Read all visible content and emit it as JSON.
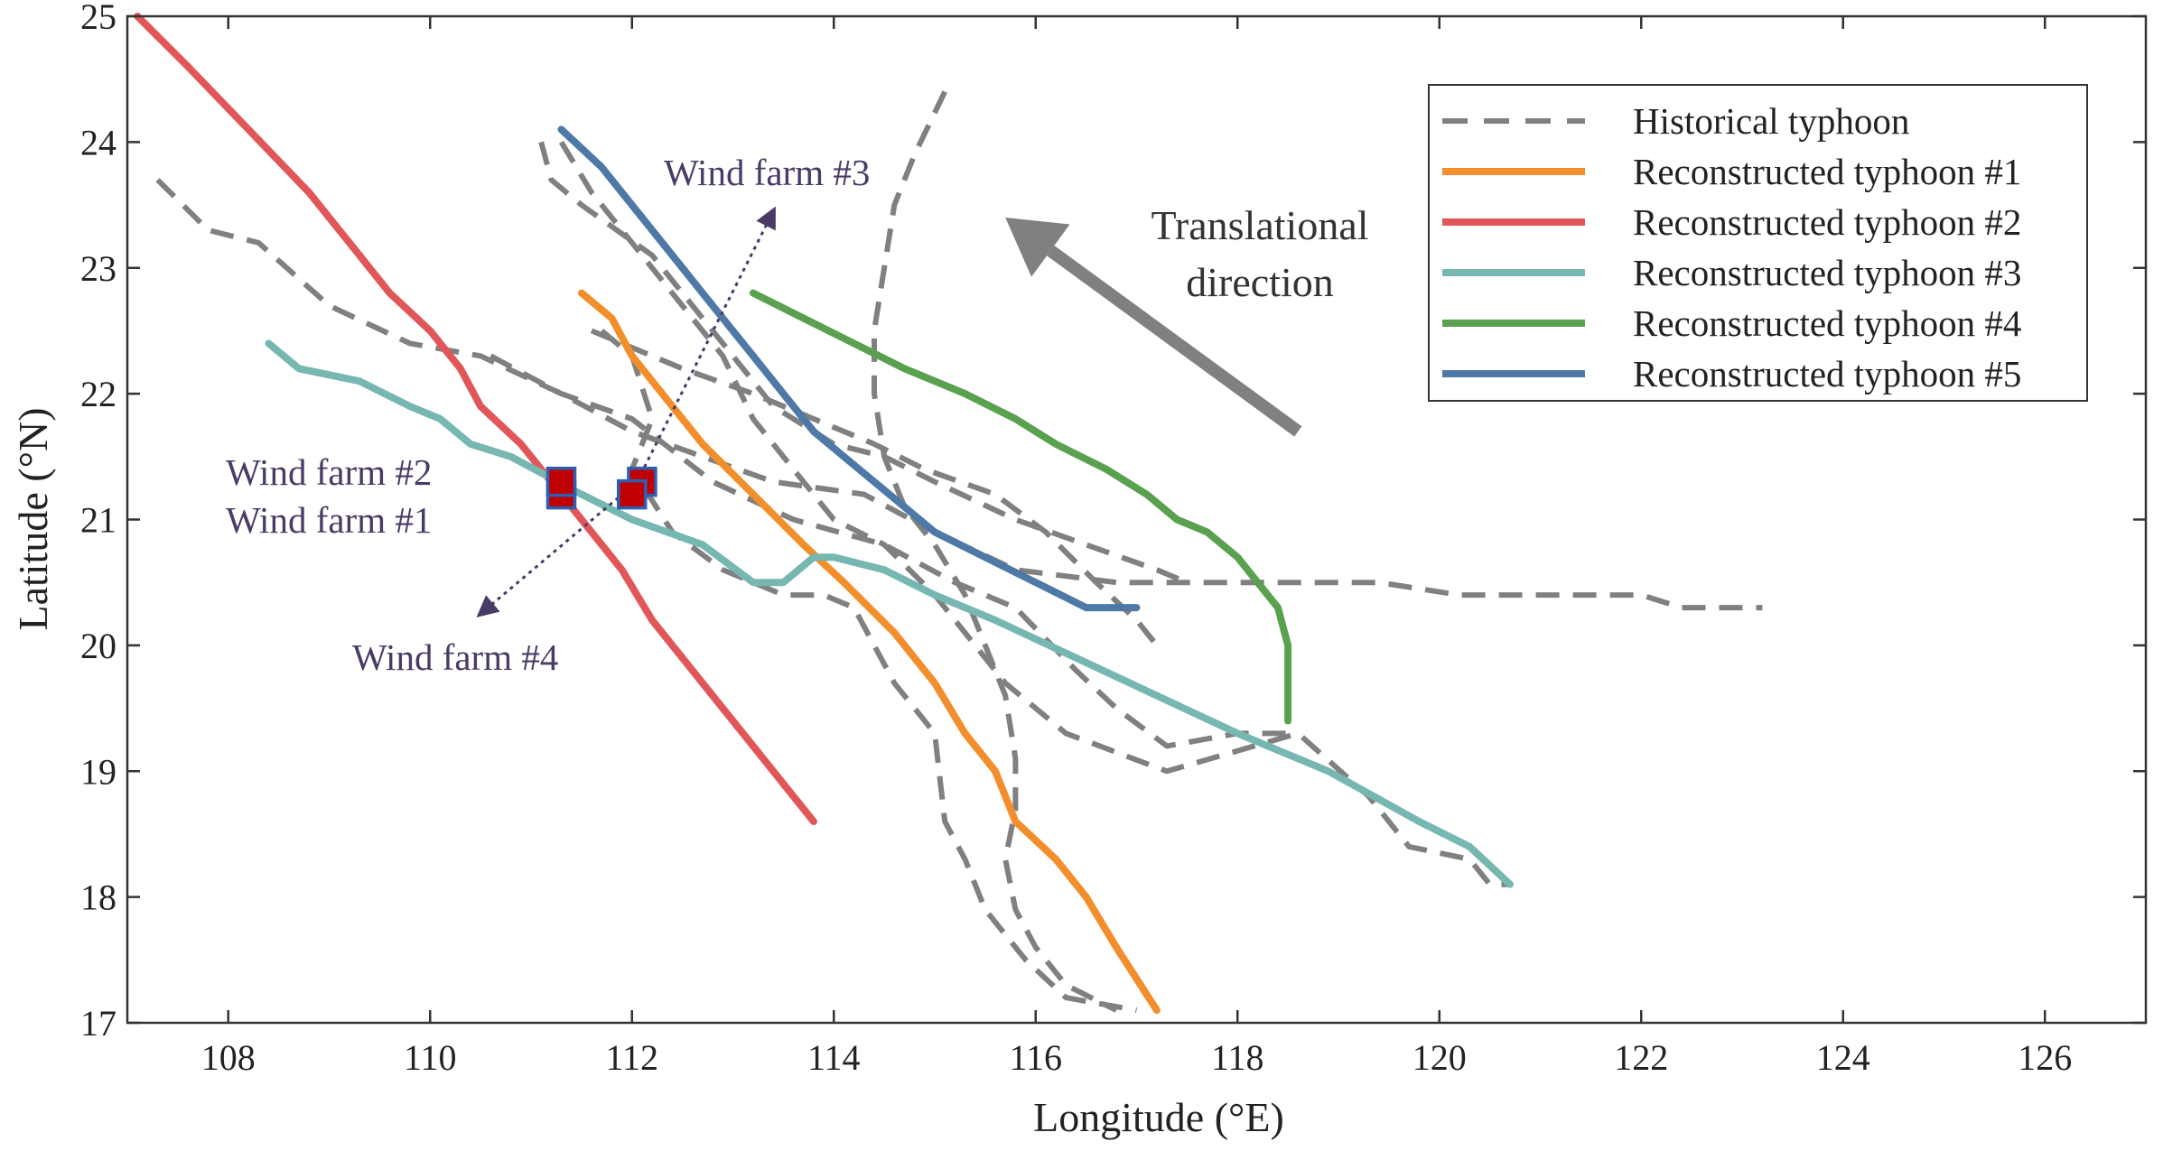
{
  "chart_data": {
    "type": "line",
    "title": "",
    "xlabel": "Longitude (°E)",
    "ylabel": "Latitude (°N)",
    "xlim": [
      107,
      127
    ],
    "ylim": [
      17,
      25
    ],
    "xticks": [
      108,
      110,
      112,
      114,
      116,
      118,
      120,
      122,
      124,
      126
    ],
    "yticks": [
      17,
      18,
      19,
      20,
      21,
      22,
      23,
      24,
      25
    ],
    "grid": false,
    "legend_position": "top-right",
    "historical_tracks": {
      "name": "Historical typhoon",
      "color": "#808080",
      "style": "dashed",
      "tracks": [
        [
          [
            107.3,
            23.7
          ],
          [
            107.8,
            23.3
          ],
          [
            108.3,
            23.2
          ],
          [
            109.0,
            22.7
          ],
          [
            109.8,
            22.4
          ],
          [
            110.5,
            22.3
          ],
          [
            111.3,
            22.0
          ],
          [
            112.0,
            21.7
          ],
          [
            112.7,
            21.5
          ],
          [
            113.4,
            21.3
          ],
          [
            114.3,
            21.2
          ],
          [
            115.0,
            20.9
          ],
          [
            115.8,
            20.6
          ],
          [
            116.8,
            20.5
          ],
          [
            118.0,
            20.5
          ],
          [
            119.4,
            20.5
          ],
          [
            120.2,
            20.4
          ],
          [
            122.0,
            20.4
          ],
          [
            122.4,
            20.3
          ],
          [
            123.2,
            20.3
          ]
        ],
        [
          [
            111.1,
            24.0
          ],
          [
            111.2,
            23.7
          ],
          [
            111.5,
            23.5
          ],
          [
            112.2,
            23.1
          ],
          [
            112.6,
            22.7
          ],
          [
            113.0,
            22.3
          ],
          [
            113.4,
            21.9
          ],
          [
            114.0,
            21.6
          ],
          [
            114.5,
            21.5
          ],
          [
            115.0,
            21.3
          ],
          [
            115.8,
            21.0
          ],
          [
            116.5,
            20.8
          ],
          [
            117.2,
            20.6
          ],
          [
            117.5,
            20.5
          ]
        ],
        [
          [
            111.3,
            24.0
          ],
          [
            111.6,
            23.6
          ],
          [
            112.0,
            23.2
          ],
          [
            112.5,
            22.7
          ],
          [
            112.9,
            22.3
          ],
          [
            113.2,
            21.8
          ],
          [
            113.6,
            21.4
          ],
          [
            114.0,
            21.0
          ],
          [
            114.5,
            20.8
          ],
          [
            115.0,
            20.4
          ],
          [
            115.7,
            19.7
          ],
          [
            116.3,
            19.3
          ],
          [
            117.3,
            19.0
          ],
          [
            118.6,
            19.3
          ],
          [
            119.3,
            18.8
          ],
          [
            119.7,
            18.4
          ],
          [
            120.3,
            18.3
          ],
          [
            120.5,
            18.1
          ],
          [
            120.7,
            18.1
          ]
        ],
        [
          [
            110.6,
            22.3
          ],
          [
            111.3,
            22.0
          ],
          [
            112.0,
            21.8
          ],
          [
            112.8,
            21.3
          ],
          [
            113.6,
            21.0
          ],
          [
            114.5,
            20.8
          ],
          [
            115.2,
            20.5
          ],
          [
            115.8,
            20.3
          ],
          [
            116.4,
            19.8
          ],
          [
            116.8,
            19.5
          ],
          [
            117.3,
            19.2
          ],
          [
            118.0,
            19.3
          ],
          [
            118.6,
            19.3
          ]
        ],
        [
          [
            111.7,
            22.5
          ],
          [
            112.0,
            22.3
          ],
          [
            112.2,
            21.8
          ],
          [
            112.0,
            21.4
          ],
          [
            112.4,
            20.9
          ],
          [
            112.9,
            20.6
          ],
          [
            113.5,
            20.4
          ],
          [
            113.9,
            20.4
          ],
          [
            114.2,
            20.3
          ],
          [
            114.6,
            19.7
          ],
          [
            115.0,
            19.3
          ],
          [
            115.1,
            18.6
          ],
          [
            115.3,
            18.3
          ],
          [
            115.5,
            17.9
          ],
          [
            115.9,
            17.5
          ],
          [
            116.3,
            17.2
          ],
          [
            117.0,
            17.1
          ]
        ],
        [
          [
            111.6,
            22.5
          ],
          [
            111.9,
            22.4
          ],
          [
            112.5,
            22.2
          ],
          [
            113.2,
            22.0
          ],
          [
            113.8,
            21.8
          ],
          [
            114.4,
            21.6
          ],
          [
            114.9,
            21.4
          ],
          [
            115.6,
            21.2
          ],
          [
            116.1,
            20.9
          ],
          [
            116.6,
            20.5
          ],
          [
            117.0,
            20.2
          ],
          [
            117.2,
            20.0
          ]
        ],
        [
          [
            115.1,
            24.4
          ],
          [
            114.8,
            23.9
          ],
          [
            114.6,
            23.5
          ],
          [
            114.5,
            23.0
          ],
          [
            114.4,
            22.5
          ],
          [
            114.4,
            22.0
          ],
          [
            114.5,
            21.5
          ],
          [
            114.7,
            21.1
          ],
          [
            115.0,
            20.8
          ],
          [
            115.3,
            20.4
          ],
          [
            115.5,
            20.0
          ],
          [
            115.7,
            19.6
          ],
          [
            115.8,
            19.1
          ],
          [
            115.8,
            18.7
          ],
          [
            115.7,
            18.3
          ],
          [
            115.8,
            17.9
          ],
          [
            116.0,
            17.6
          ],
          [
            116.3,
            17.3
          ],
          [
            116.8,
            17.1
          ]
        ]
      ]
    },
    "series": [
      {
        "name": "Reconstructed typhoon #1",
        "color": "#f28e2b",
        "points": [
          [
            111.5,
            22.8
          ],
          [
            111.8,
            22.6
          ],
          [
            112.0,
            22.3
          ],
          [
            112.3,
            22.0
          ],
          [
            112.7,
            21.6
          ],
          [
            113.2,
            21.2
          ],
          [
            113.7,
            20.8
          ],
          [
            114.1,
            20.5
          ],
          [
            114.6,
            20.1
          ],
          [
            115.0,
            19.7
          ],
          [
            115.3,
            19.3
          ],
          [
            115.6,
            19.0
          ],
          [
            115.8,
            18.6
          ],
          [
            116.2,
            18.3
          ],
          [
            116.5,
            18.0
          ],
          [
            116.8,
            17.6
          ],
          [
            117.2,
            17.1
          ]
        ]
      },
      {
        "name": "Reconstructed typhoon #2",
        "color": "#e15759",
        "points": [
          [
            107.1,
            25.0
          ],
          [
            107.6,
            24.6
          ],
          [
            108.2,
            24.1
          ],
          [
            108.8,
            23.6
          ],
          [
            109.2,
            23.2
          ],
          [
            109.6,
            22.8
          ],
          [
            110.0,
            22.5
          ],
          [
            110.3,
            22.2
          ],
          [
            110.5,
            21.9
          ],
          [
            110.9,
            21.6
          ],
          [
            111.2,
            21.3
          ],
          [
            111.5,
            21.0
          ],
          [
            111.9,
            20.6
          ],
          [
            112.2,
            20.2
          ],
          [
            112.5,
            19.9
          ],
          [
            112.8,
            19.6
          ],
          [
            113.2,
            19.2
          ],
          [
            113.5,
            18.9
          ],
          [
            113.8,
            18.6
          ]
        ]
      },
      {
        "name": "Reconstructed typhoon #3",
        "color": "#76b7b2",
        "points": [
          [
            108.4,
            22.4
          ],
          [
            108.7,
            22.2
          ],
          [
            109.3,
            22.1
          ],
          [
            109.8,
            21.9
          ],
          [
            110.1,
            21.8
          ],
          [
            110.4,
            21.6
          ],
          [
            110.8,
            21.5
          ],
          [
            111.5,
            21.2
          ],
          [
            112.0,
            21.0
          ],
          [
            112.7,
            20.8
          ],
          [
            113.2,
            20.5
          ],
          [
            113.5,
            20.5
          ],
          [
            113.8,
            20.7
          ],
          [
            114.0,
            20.7
          ],
          [
            114.5,
            20.6
          ],
          [
            115.0,
            20.4
          ],
          [
            115.6,
            20.2
          ],
          [
            116.4,
            19.9
          ],
          [
            117.2,
            19.6
          ],
          [
            118.0,
            19.3
          ],
          [
            118.9,
            19.0
          ],
          [
            119.8,
            18.6
          ],
          [
            120.3,
            18.4
          ],
          [
            120.7,
            18.1
          ]
        ]
      },
      {
        "name": "Reconstructed typhoon #4",
        "color": "#59a14f",
        "points": [
          [
            113.2,
            22.8
          ],
          [
            113.7,
            22.6
          ],
          [
            114.2,
            22.4
          ],
          [
            114.7,
            22.2
          ],
          [
            115.3,
            22.0
          ],
          [
            115.8,
            21.8
          ],
          [
            116.2,
            21.6
          ],
          [
            116.7,
            21.4
          ],
          [
            117.1,
            21.2
          ],
          [
            117.4,
            21.0
          ],
          [
            117.7,
            20.9
          ],
          [
            118.0,
            20.7
          ],
          [
            118.2,
            20.5
          ],
          [
            118.4,
            20.3
          ],
          [
            118.5,
            20.0
          ],
          [
            118.5,
            19.7
          ],
          [
            118.5,
            19.4
          ]
        ]
      },
      {
        "name": "Reconstructed typhoon #5",
        "color": "#4e79a7",
        "points": [
          [
            111.3,
            24.1
          ],
          [
            111.7,
            23.8
          ],
          [
            112.0,
            23.5
          ],
          [
            112.3,
            23.2
          ],
          [
            112.6,
            22.9
          ],
          [
            112.9,
            22.6
          ],
          [
            113.2,
            22.3
          ],
          [
            113.5,
            22.0
          ],
          [
            113.8,
            21.7
          ],
          [
            114.1,
            21.5
          ],
          [
            114.4,
            21.3
          ],
          [
            114.7,
            21.1
          ],
          [
            115.0,
            20.9
          ],
          [
            115.5,
            20.7
          ],
          [
            116.0,
            20.5
          ],
          [
            116.5,
            20.3
          ],
          [
            117.0,
            20.3
          ]
        ]
      }
    ],
    "wind_farms": [
      {
        "name": "Wind farm #1",
        "lon": 111.3,
        "lat": 21.2
      },
      {
        "name": "Wind farm #2",
        "lon": 111.3,
        "lat": 21.3
      },
      {
        "name": "Wind farm #3",
        "lon": 112.1,
        "lat": 21.3
      },
      {
        "name": "Wind farm #4",
        "lon": 112.0,
        "lat": 21.2
      }
    ],
    "annotations": {
      "wind_farm_2": "Wind farm #2",
      "wind_farm_1": "Wind farm #1",
      "wind_farm_3": "Wind farm #3",
      "wind_farm_4": "Wind farm #4",
      "direction_line1": "Translational",
      "direction_line2": "direction"
    },
    "direction_arrow": {
      "from": [
        118.6,
        21.7
      ],
      "to": [
        115.7,
        23.4
      ],
      "color": "#808080"
    }
  }
}
